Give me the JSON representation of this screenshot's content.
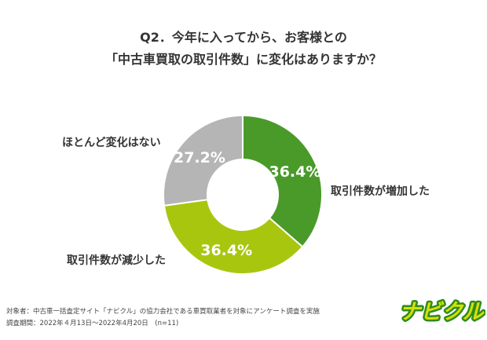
{
  "title_line1": "Q2．今年に入ってから、お客様との",
  "title_line2": "「中古車買取の取引件数」に変化はありますか？",
  "chart_data": {
    "type": "pie",
    "donut": true,
    "categories": [
      "取引件数が増加した",
      "取引件数が減少した",
      "ほとんど変化はない"
    ],
    "values": [
      36.4,
      36.4,
      27.2
    ],
    "value_labels": [
      "36.4%",
      "36.4%",
      "27.2%"
    ],
    "colors": [
      "#4a9a2a",
      "#a9c60f",
      "#b5b5b5"
    ]
  },
  "footer_line1": "対象者：中古車一括査定サイト「ナビクル」の協力会社である車買取業者を対象にアンケート調査を実施",
  "footer_line2": "調査期間：2022年４月13日〜2022年4月20日　(n=11)",
  "logo_text": "ナビクル",
  "logo_colors": {
    "fill": "#d6e000",
    "outline": "#2e8b1e"
  }
}
